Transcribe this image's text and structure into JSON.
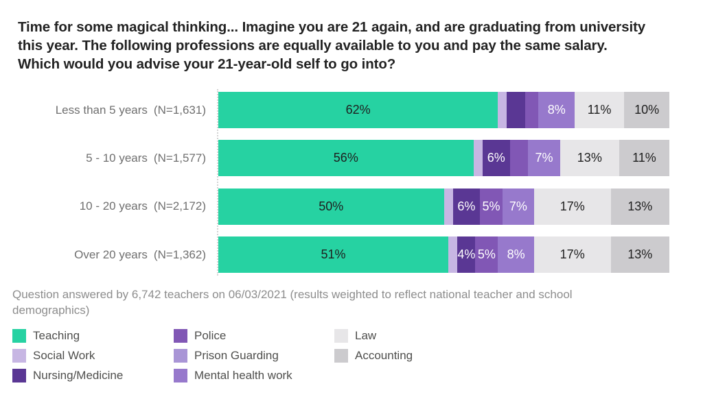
{
  "title_lines": [
    "Time for some magical thinking... Imagine you are 21 again, and are graduating from university",
    "this year. The following professions are equally available to you and pay the same salary.",
    "Which would you advise your 21-year-old self to go into?"
  ],
  "footnote_lines": [
    "Question answered by 6,742 teachers on 06/03/2021 (results weighted to reflect national teacher and school",
    "demographics)"
  ],
  "chart_data": {
    "type": "bar",
    "orientation": "horizontal",
    "stacked": true,
    "axis_range_percent": [
      0,
      100
    ],
    "grid": "off",
    "legend_position": "bottom",
    "categories": [
      "Less than 5 years",
      "5 - 10 years",
      "10 - 20 years",
      "Over 20 years"
    ],
    "category_counts": [
      "(N=1,631)",
      "(N=1,577)",
      "(N=2,172)",
      "(N=1,362)"
    ],
    "series": [
      {
        "name": "Teaching",
        "color": "#26d2a2",
        "label_color": "#1e1e1e",
        "values": [
          62,
          56,
          50,
          51
        ],
        "labels": [
          "62%",
          "56%",
          "50%",
          "51%"
        ]
      },
      {
        "name": "Social Work",
        "color": "#c7b6e3",
        "label_color": "#1e1e1e",
        "values": [
          2,
          2,
          2,
          2
        ],
        "labels": [
          "",
          "",
          "",
          ""
        ]
      },
      {
        "name": "Nursing/Medicine",
        "color": "#5a3794",
        "label_color": "#ffffff",
        "values": [
          4,
          6,
          6,
          4
        ],
        "labels": [
          "",
          "6%",
          "6%",
          "4%"
        ]
      },
      {
        "name": "Police",
        "color": "#8157b5",
        "label_color": "#ffffff",
        "values": [
          3,
          4,
          5,
          5
        ],
        "labels": [
          "",
          "",
          "5%",
          "5%"
        ]
      },
      {
        "name": "Prison Guarding",
        "color": "#a995d6",
        "label_color": "#ffffff",
        "values": [
          0,
          0,
          0,
          0
        ],
        "labels": [
          "",
          "",
          "",
          ""
        ]
      },
      {
        "name": "Mental health work",
        "color": "#9779cc",
        "label_color": "#ffffff",
        "values": [
          8,
          7,
          7,
          8
        ],
        "labels": [
          "8%",
          "7%",
          "7%",
          "8%"
        ]
      },
      {
        "name": "Law",
        "color": "#e7e6e8",
        "label_color": "#1e1e1e",
        "values": [
          11,
          13,
          17,
          17
        ],
        "labels": [
          "11%",
          "13%",
          "17%",
          "17%"
        ]
      },
      {
        "name": "Accounting",
        "color": "#cccbce",
        "label_color": "#1e1e1e",
        "values": [
          10,
          11,
          13,
          13
        ],
        "labels": [
          "10%",
          "11%",
          "13%",
          "13%"
        ]
      }
    ],
    "legend_columns": [
      [
        0,
        1,
        2
      ],
      [
        3,
        4,
        5
      ],
      [
        6,
        7
      ]
    ]
  }
}
